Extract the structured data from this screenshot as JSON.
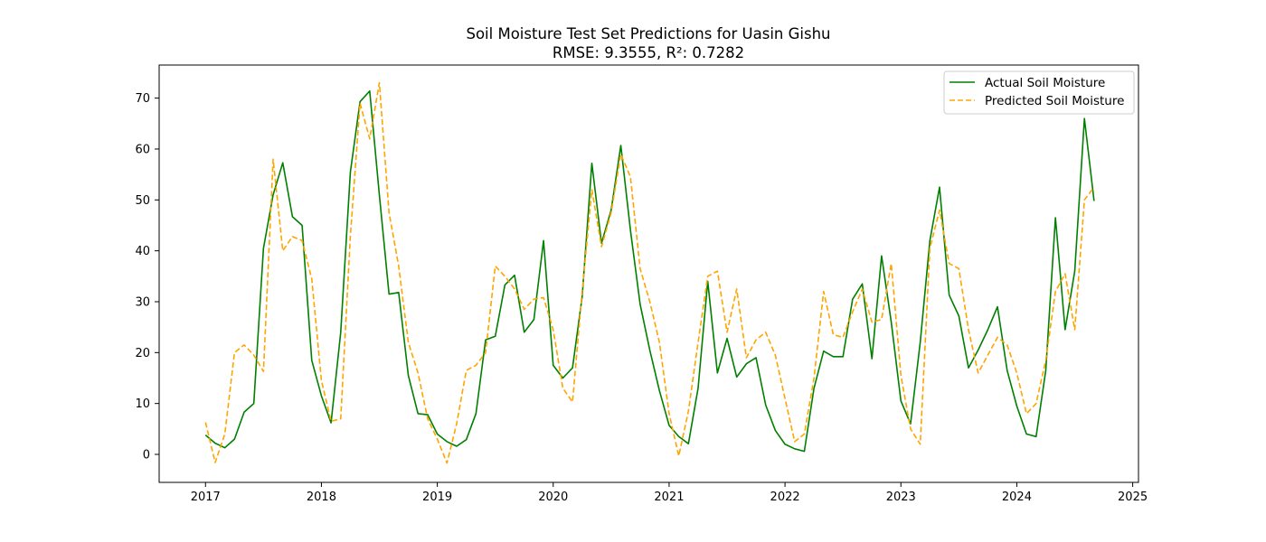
{
  "chart_data": {
    "type": "line",
    "title": "Soil Moisture Test Set Predictions for Uasin Gishu",
    "subtitle": "RMSE: 9.3555, R²: 0.7282",
    "xlabel": "",
    "ylabel": "",
    "xlim": [
      2016.6,
      2025.05
    ],
    "ylim": [
      -5.5,
      76.5
    ],
    "xticks": [
      "2017",
      "2018",
      "2019",
      "2020",
      "2021",
      "2022",
      "2023",
      "2024",
      "2025"
    ],
    "yticks": [
      "0",
      "10",
      "20",
      "30",
      "40",
      "50",
      "60",
      "70"
    ],
    "grid": false,
    "legend_position": "upper right",
    "series": [
      {
        "name": "Actual Soil Moisture",
        "color": "#008000",
        "style": "solid",
        "values": [
          3.8,
          2.2,
          1.3,
          3.0,
          8.3,
          10.0,
          40.5,
          51.0,
          57.3,
          46.7,
          45.0,
          18.5,
          11.5,
          6.2,
          24.0,
          55.5,
          69.3,
          71.4,
          51.0,
          31.5,
          31.8,
          15.5,
          8.0,
          7.8,
          4.0,
          2.5,
          1.6,
          2.9,
          8.0,
          22.5,
          23.2,
          33.3,
          35.2,
          24.0,
          26.5,
          42.0,
          17.5,
          15.0,
          17.0,
          31.0,
          57.2,
          41.5,
          48.0,
          60.7,
          44.0,
          29.5,
          20.5,
          12.5,
          5.7,
          3.5,
          2.1,
          13.0,
          34.0,
          16.0,
          22.8,
          15.2,
          17.8,
          19.0,
          9.7,
          4.7,
          2.0,
          1.1,
          0.6,
          13.0,
          20.3,
          19.2,
          19.2,
          30.5,
          33.5,
          18.8,
          39.0,
          26.0,
          10.5,
          6.0,
          22.0,
          42.0,
          52.5,
          31.3,
          27.2,
          17.0,
          20.5,
          24.5,
          29.0,
          16.5,
          9.5,
          4.0,
          3.5,
          16.5,
          46.5,
          24.5,
          36.0,
          66.0,
          49.8
        ]
      },
      {
        "name": "Predicted Soil Moisture",
        "color": "#ffa500",
        "style": "dashed",
        "values": [
          6.3,
          -1.6,
          4.0,
          20.0,
          21.5,
          19.5,
          16.3,
          58.0,
          40.0,
          42.8,
          42.0,
          34.5,
          14.5,
          6.5,
          7.0,
          43.0,
          69.0,
          62.0,
          73.0,
          47.5,
          37.0,
          22.0,
          16.0,
          7.0,
          3.0,
          -1.7,
          6.0,
          16.5,
          17.5,
          20.0,
          37.0,
          35.0,
          32.5,
          28.5,
          30.5,
          30.8,
          24.5,
          13.0,
          10.3,
          32.0,
          52.0,
          40.8,
          47.5,
          59.0,
          54.5,
          36.5,
          30.0,
          22.0,
          8.0,
          -0.3,
          8.5,
          22.0,
          35.0,
          36.0,
          24.0,
          32.5,
          19.0,
          22.5,
          24.0,
          19.5,
          11.0,
          2.5,
          4.0,
          15.0,
          32.0,
          23.5,
          23.0,
          28.0,
          32.5,
          26.0,
          26.5,
          37.5,
          15.5,
          5.0,
          2.0,
          40.5,
          48.0,
          37.5,
          36.5,
          24.5,
          16.0,
          19.5,
          23.0,
          21.5,
          16.0,
          8.0,
          10.0,
          18.5,
          32.0,
          35.5,
          24.5,
          50.0,
          52.5
        ]
      }
    ],
    "x_start": "2017-01",
    "x_interval": "monthly"
  }
}
